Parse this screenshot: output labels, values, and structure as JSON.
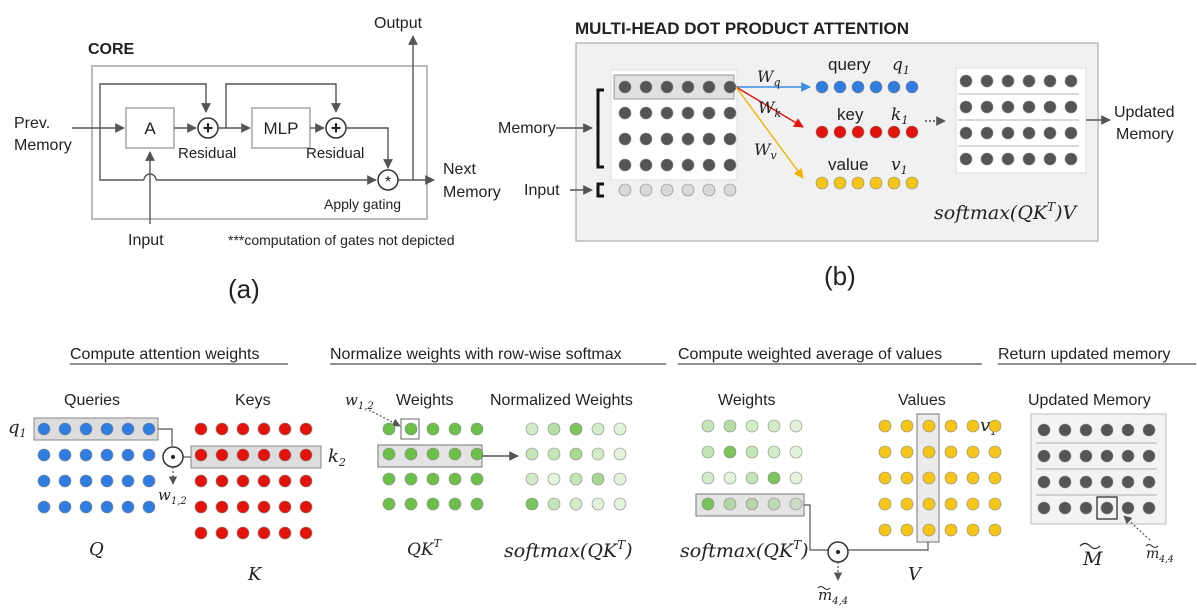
{
  "core": {
    "title": "CORE",
    "output": "Output",
    "prev_memory": [
      "Prev.",
      "Memory"
    ],
    "attn_box": "A",
    "mlp_box": "MLP",
    "residual1": "Residual",
    "residual2": "Residual",
    "next_memory": [
      "Next",
      "Memory"
    ],
    "apply_gating": "Apply gating",
    "input": "Input",
    "note": "***computation of gates not depicted",
    "caption": "(a)"
  },
  "mhdpa": {
    "title": "MULTI-HEAD DOT PRODUCT ATTENTION",
    "memory": "Memory",
    "input": "Input",
    "wq": "W",
    "wq_sub": "q",
    "wk": "W",
    "wk_sub": "k",
    "wv": "W",
    "wv_sub": "v",
    "query": "query",
    "query_sym": "q",
    "query_sub": "1",
    "key": "key",
    "key_sym": "k",
    "key_sub": "1",
    "value": "value",
    "value_sym": "v",
    "value_sub": "1",
    "updated_memory": [
      "Updated",
      "Memory"
    ],
    "softmax": "softmax(QK",
    "softmax_sup": "T",
    "softmax_tail": ")V",
    "caption": "(b)"
  },
  "steps": {
    "step1": {
      "heading": "Compute attention weights",
      "queries": "Queries",
      "keys": "Keys",
      "q1": "q",
      "q1_sub": "1",
      "k2": "k",
      "k2_sub": "2",
      "w12": "w",
      "w12_sub": "1,2",
      "Q": "Q",
      "K": "K"
    },
    "step2": {
      "heading": "Normalize weights with row-wise softmax",
      "w12": "w",
      "w12_sub": "1,2",
      "weights": "Weights",
      "normalized": "Normalized Weights",
      "qkt": "QK",
      "qkt_sup": "T",
      "softmax": "softmax(QK",
      "softmax_sup": "T",
      "softmax_tail": ")"
    },
    "step3": {
      "heading": "Compute weighted average of values",
      "weights": "Weights",
      "values": "Values",
      "v1": "v",
      "v1_sub": "1",
      "softmax": "softmax(QK",
      "softmax_sup": "T",
      "softmax_tail": ")",
      "V": "V",
      "m44": "m",
      "m44_sub": "4,4"
    },
    "step4": {
      "heading": "Return updated memory",
      "updated_memory": "Updated Memory",
      "M": "M",
      "m44": "m",
      "m44_sub": "4,4"
    }
  },
  "colors": {
    "blue": "#2f7de1",
    "red": "#e3120b",
    "yellow": "#f5c518",
    "green": "#6cc04a",
    "gray": "#555555",
    "light_gray": "#d8d8d8",
    "panel": "#f0f0f0"
  }
}
